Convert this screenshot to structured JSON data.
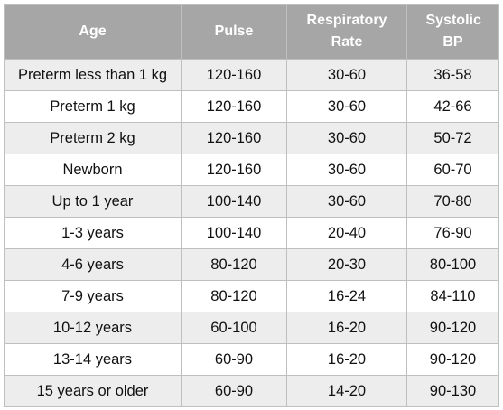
{
  "table": {
    "headers": {
      "age": "Age",
      "pulse": "Pulse",
      "respiratory_rate": "Respiratory Rate",
      "systolic_bp": "Systolic BP"
    },
    "rows": [
      {
        "age": "Preterm less than 1 kg",
        "pulse": "120-160",
        "respiratory_rate": "30-60",
        "systolic_bp": "36-58"
      },
      {
        "age": "Preterm 1 kg",
        "pulse": "120-160",
        "respiratory_rate": "30-60",
        "systolic_bp": "42-66"
      },
      {
        "age": "Preterm 2 kg",
        "pulse": "120-160",
        "respiratory_rate": "30-60",
        "systolic_bp": "50-72"
      },
      {
        "age": "Newborn",
        "pulse": "120-160",
        "respiratory_rate": "30-60",
        "systolic_bp": "60-70"
      },
      {
        "age": "Up to 1 year",
        "pulse": "100-140",
        "respiratory_rate": "30-60",
        "systolic_bp": "70-80"
      },
      {
        "age": "1-3 years",
        "pulse": "100-140",
        "respiratory_rate": "20-40",
        "systolic_bp": "76-90"
      },
      {
        "age": "4-6 years",
        "pulse": "80-120",
        "respiratory_rate": "20-30",
        "systolic_bp": "80-100"
      },
      {
        "age": "7-9 years",
        "pulse": "80-120",
        "respiratory_rate": "16-24",
        "systolic_bp": "84-110"
      },
      {
        "age": "10-12 years",
        "pulse": "60-100",
        "respiratory_rate": "16-20",
        "systolic_bp": "90-120"
      },
      {
        "age": "13-14 years",
        "pulse": "60-90",
        "respiratory_rate": "16-20",
        "systolic_bp": "90-120"
      },
      {
        "age": "15 years or older",
        "pulse": "60-90",
        "respiratory_rate": "14-20",
        "systolic_bp": "90-130"
      }
    ]
  },
  "colors": {
    "header_background": "#a6a6a6",
    "header_text": "#ffffff",
    "row_shaded": "#ededed",
    "row_plain": "#ffffff",
    "grid_line": "#bfbfbf"
  }
}
